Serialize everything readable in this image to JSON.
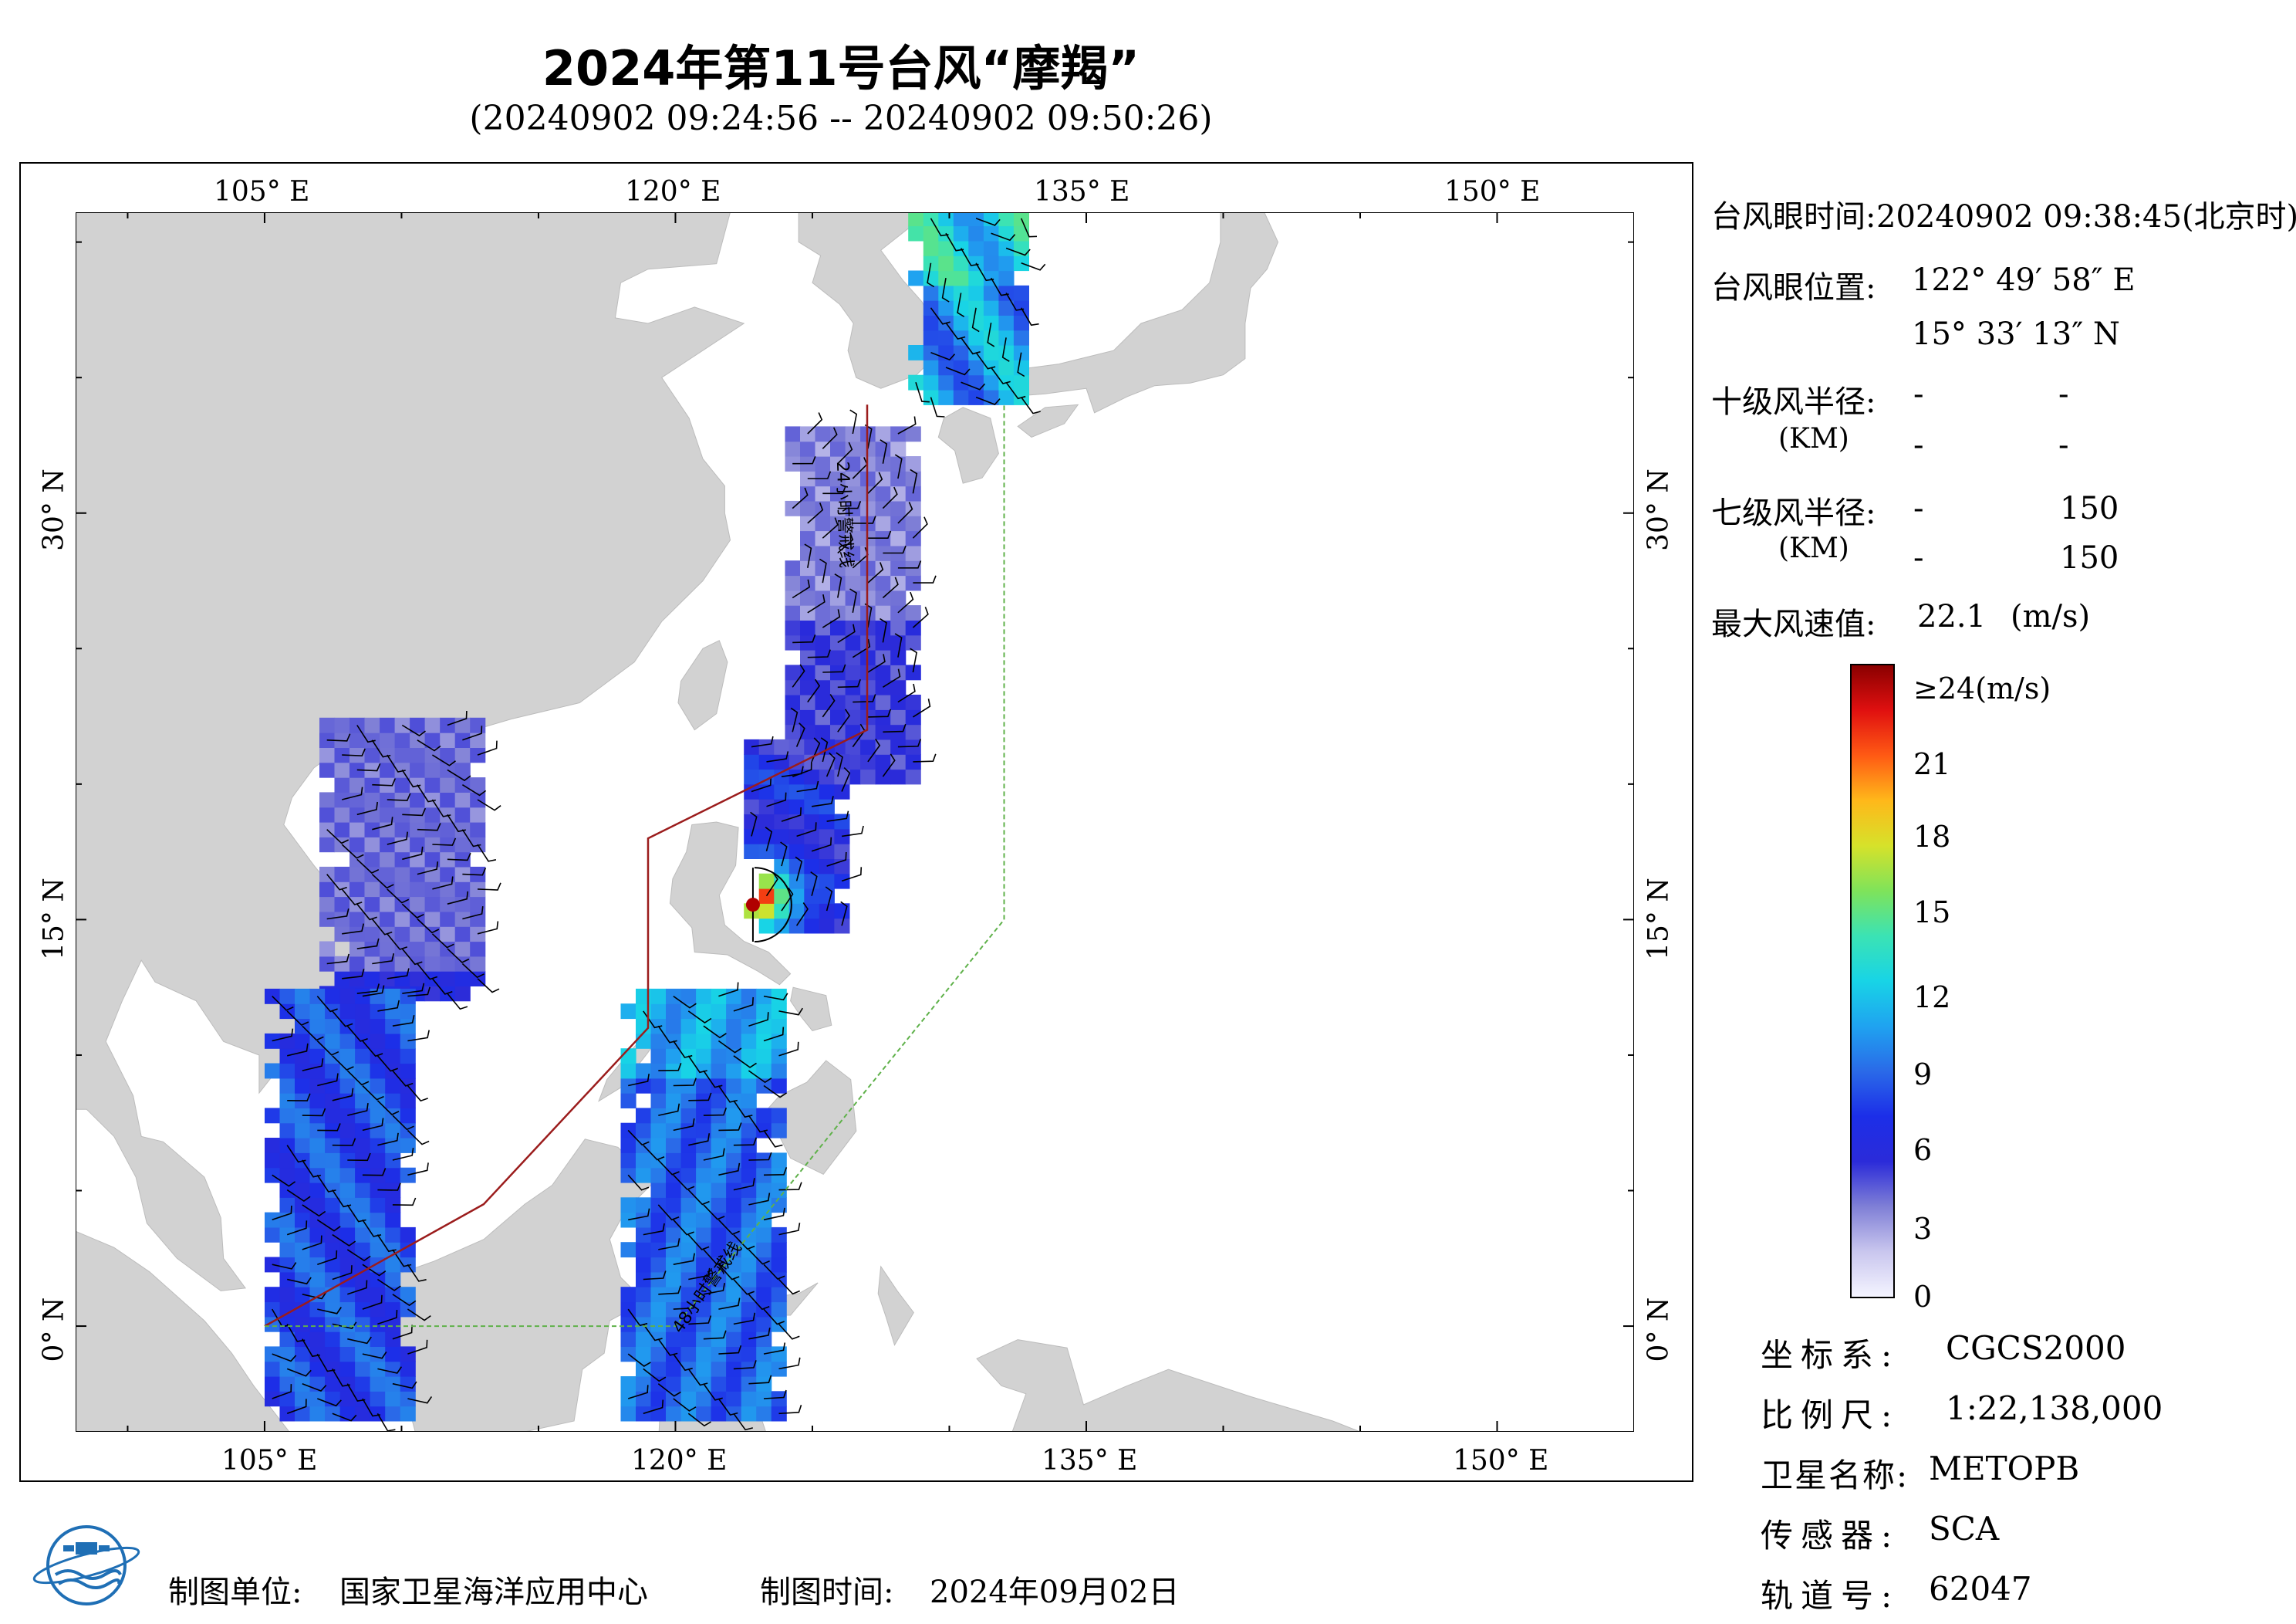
{
  "header": {
    "title": "2024年第11号台风“摩羯”",
    "subtitle": "(20240902 09:24:56 -- 20240902 09:50:26)"
  },
  "map": {
    "lon_ticks": [
      "105° E",
      "120° E",
      "135° E",
      "150° E"
    ],
    "lat_ticks": [
      "30° N",
      "15° N",
      "0° N"
    ],
    "line_24h_label": "24小时警戒线",
    "line_48h_label": "48小时警戒线",
    "eye_lon": 122.83,
    "eye_lat": 15.55,
    "colors": {
      "land": "#d2d2d2",
      "ocean": "#ffffff",
      "warn24": "#9b1c1c",
      "warn48": "#5fb14a",
      "contour": "#000000"
    },
    "wind_swaths": [
      {
        "name": "swath-east-china-sea",
        "lon_min": 124.0,
        "lon_max": 128.5,
        "lat_min": 20.0,
        "lat_max": 33.0
      },
      {
        "name": "swath-korea",
        "lon_min": 128.5,
        "lon_max": 132.5,
        "lat_min": 34.0,
        "lat_max": 41.0
      },
      {
        "name": "swath-luzon-strait",
        "lon_min": 122.5,
        "lon_max": 126.0,
        "lat_min": 14.5,
        "lat_max": 21.5
      },
      {
        "name": "swath-south-china-sea",
        "lon_min": 107.0,
        "lon_max": 113.0,
        "lat_min": 12.0,
        "lat_max": 22.0
      },
      {
        "name": "swath-south-south-china-sea",
        "lon_min": 105.0,
        "lon_max": 110.0,
        "lat_min": -3.5,
        "lat_max": 12.0
      },
      {
        "name": "swath-sulu-celebes",
        "lon_min": 118.0,
        "lon_max": 123.5,
        "lat_min": -3.5,
        "lat_max": 12.0
      }
    ]
  },
  "info_panel": {
    "eye_time_label": "台风眼时间:",
    "eye_time_value": "20240902 09:38:45(北京时)",
    "eye_pos_label": "台风眼位置:",
    "eye_lon_text": "122° 49′ 58″ E",
    "eye_lat_text": "15° 33′ 13″ N",
    "r10_label": "十级风半径:",
    "r10_unit": "(KM)",
    "r10_values": [
      [
        "-",
        "-"
      ],
      [
        "-",
        "-"
      ]
    ],
    "r7_label": "七级风半径:",
    "r7_unit": "(KM)",
    "r7_values": [
      [
        "-",
        "150"
      ],
      [
        "-",
        "150"
      ]
    ],
    "max_wind_label": "最大风速值:",
    "max_wind_value": "22.1",
    "max_wind_unit": "(m/s)"
  },
  "colorbar": {
    "labels": [
      "≥24(m/s)",
      "21",
      "18",
      "15",
      "12",
      "9",
      "6",
      "3",
      "0"
    ],
    "values": [
      24,
      21,
      18,
      15,
      12,
      9,
      6,
      3,
      0
    ],
    "stops": [
      "#f4f4ff",
      "#c9c6ee",
      "#7f7fd6",
      "#2b2bd9",
      "#1c2ee8",
      "#2a6ae8",
      "#1fa3f0",
      "#18d4e6",
      "#3be3b4",
      "#7fe35a",
      "#d6e22a",
      "#ffb81a",
      "#ff5a14",
      "#e01010",
      "#8a0000"
    ]
  },
  "metadata": {
    "coord_label": "坐标系:",
    "coord_value": "CGCS2000",
    "scale_label": "比例尺:",
    "scale_value": "1:22,138,000",
    "satellite_label": "卫星名称:",
    "satellite_value": "METOPB",
    "sensor_label": "传感器:",
    "sensor_value": "SCA",
    "orbit_label": "轨道号:",
    "orbit_value": "62047"
  },
  "footer": {
    "producer_label": "制图单位:",
    "producer_value": "国家卫星海洋应用中心",
    "time_label": "制图时间:",
    "time_value": "2024年09月02日"
  }
}
